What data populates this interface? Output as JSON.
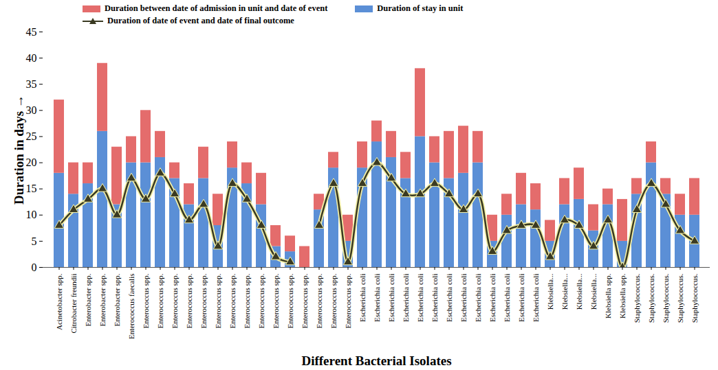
{
  "chart_data": {
    "type": "bar",
    "stacked": true,
    "legend": "top",
    "grid": false,
    "x_label": "Different Bacterial Isolates",
    "y_label": "Duration in days",
    "ylim": [
      0,
      45
    ],
    "yticks": [
      0,
      5,
      10,
      15,
      20,
      25,
      30,
      35,
      40,
      45
    ],
    "categories": [
      "Acinetobacter spp.",
      "Citrobacter freundii",
      "Enterobacter spp.",
      "Enterobacter spp.",
      "Enterobacter spp.",
      "Enterococcus faecalis",
      "Enterococcus spp.",
      "Enterococcus spp.",
      "Enterococcus spp.",
      "Enterococcus spp.",
      "Enterococcus spp.",
      "Enterococcus spp.",
      "Enterococcus spp.",
      "Enterococcus spp.",
      "Enterococcus spp.",
      "Enterococcus spp.",
      "Enterococcus spp.",
      "Enterococcus spp.",
      "Enterococcus spp.",
      "Enterococcus spp.",
      "Enterococcus spp.",
      "Escherichia coli",
      "Escherichia coli",
      "Escherichia coli",
      "Escherichia coli",
      "Escherichia coli",
      "Escherichia coli",
      "Escherichia coli",
      "Escherichia coli",
      "Escherichia coli",
      "Escherichia coli",
      "Escherichia coli",
      "Escherichia coli",
      "Escherichia coli",
      "Klebsiella...",
      "Klebsiella...",
      "Klebsiella...",
      "Klebsiella...",
      "Klebsiella spp.",
      "Klebsiella spp.",
      "Staphylococcus.",
      "Staphylococcus.",
      "Staphylococcus.",
      "Staphylococcus.",
      "Staphylococcus."
    ],
    "series": [
      {
        "name": "Duration between date of admission in unit and date of event",
        "type": "bar",
        "color": "#e46c6c",
        "values": [
          14,
          6,
          4,
          13,
          11,
          5,
          10,
          5,
          3,
          4,
          6,
          6,
          5,
          4,
          6,
          4,
          3,
          4,
          3,
          3,
          5,
          5,
          4,
          5,
          5,
          13,
          5,
          9,
          9,
          6,
          5,
          4,
          6,
          5,
          4,
          5,
          6,
          5,
          3,
          8,
          3,
          4,
          3,
          4,
          7
        ]
      },
      {
        "name": "Duration of stay in unit",
        "type": "bar",
        "color": "#5b8fd6",
        "values": [
          18,
          14,
          16,
          26,
          12,
          20,
          20,
          21,
          17,
          12,
          17,
          8,
          19,
          16,
          12,
          4,
          3,
          0,
          11,
          19,
          5,
          19,
          24,
          21,
          17,
          25,
          20,
          17,
          18,
          20,
          5,
          10,
          12,
          11,
          5,
          12,
          13,
          7,
          12,
          5,
          14,
          20,
          14,
          10,
          10
        ]
      },
      {
        "name": "Duration of date of event and date of final outcome",
        "type": "line",
        "marker": "triangle",
        "color": "#3a3a22",
        "values": [
          8,
          11,
          13,
          15,
          10,
          17,
          13,
          18,
          14,
          9,
          12,
          4,
          16,
          13,
          8,
          2,
          1,
          null,
          8,
          16,
          1,
          16,
          20,
          17,
          14,
          14,
          16,
          14,
          11,
          14,
          3,
          7,
          8,
          8,
          2,
          9,
          8,
          4,
          9,
          0,
          11,
          16,
          12,
          7,
          5
        ]
      }
    ]
  }
}
